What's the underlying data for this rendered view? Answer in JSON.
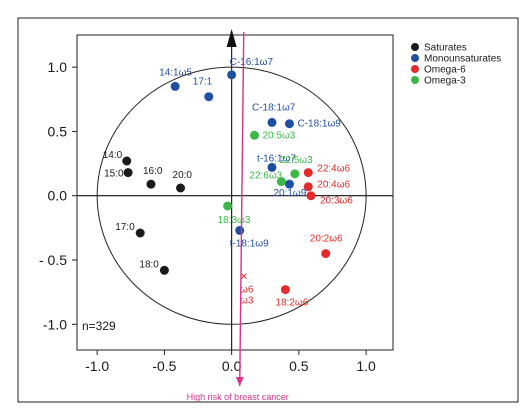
{
  "chart_data": {
    "type": "scatter",
    "title": "",
    "xlabel": "",
    "ylabel": "",
    "xlim": [
      -1.15,
      1.2
    ],
    "ylim": [
      -1.2,
      1.25
    ],
    "x_ticks": [
      -1.0,
      -0.5,
      0.0,
      0.5,
      1.0
    ],
    "x_tick_labels": [
      "-1.0",
      "-0.5",
      "0.0",
      "0.5",
      "1.0"
    ],
    "y_ticks": [
      1.0,
      0.5,
      0.0,
      -0.5,
      -1.0
    ],
    "y_tick_labels": [
      "1.0",
      "0.5",
      "0.0",
      "- 0.5",
      "-1.0"
    ],
    "grid": false,
    "legend_position": "top-right",
    "unit_circle": true,
    "colors": {
      "Saturates": "#1a1a1a",
      "Monounsaturates": "#1f4fa0",
      "Omega-6": "#e32b2b",
      "Omega-3": "#3cb84a",
      "arrow": "#d6338a"
    },
    "series": [
      {
        "name": "Saturates",
        "points": [
          {
            "label": "14:0",
            "x": -0.78,
            "y": 0.27
          },
          {
            "label": "15:0",
            "x": -0.77,
            "y": 0.18
          },
          {
            "label": "16:0",
            "x": -0.6,
            "y": 0.09
          },
          {
            "label": "20:0",
            "x": -0.38,
            "y": 0.06
          },
          {
            "label": "17:0",
            "x": -0.68,
            "y": -0.29
          },
          {
            "label": "18:0",
            "x": -0.5,
            "y": -0.58
          }
        ]
      },
      {
        "name": "Monounsaturates",
        "points": [
          {
            "label": "14:1ω5",
            "x": -0.42,
            "y": 0.85
          },
          {
            "label": "17:1",
            "x": -0.17,
            "y": 0.77
          },
          {
            "label": "C-16:1ω7",
            "x": 0.0,
            "y": 0.94
          },
          {
            "label": "C-18:1ω7",
            "x": 0.3,
            "y": 0.57
          },
          {
            "label": "C-18:1ω9",
            "x": 0.43,
            "y": 0.56
          },
          {
            "label": "t-16:1ω7",
            "x": 0.3,
            "y": 0.22
          },
          {
            "label": "20:1ω9",
            "x": 0.43,
            "y": 0.09
          },
          {
            "label": "t-18:1ω9",
            "x": 0.06,
            "y": -0.27
          }
        ]
      },
      {
        "name": "Omega-6",
        "points": [
          {
            "label": "22:4ω6",
            "x": 0.57,
            "y": 0.18
          },
          {
            "label": "20:4ω6",
            "x": 0.57,
            "y": 0.07
          },
          {
            "label": "20:3ω6",
            "x": 0.59,
            "y": 0.0
          },
          {
            "label": "20:2ω6",
            "x": 0.7,
            "y": -0.45
          },
          {
            "label": "18:2ω6",
            "x": 0.4,
            "y": -0.73
          }
        ]
      },
      {
        "name": "Omega-3",
        "points": [
          {
            "label": "20:5ω3",
            "x": 0.17,
            "y": 0.47
          },
          {
            "label": "22:5ω3",
            "x": 0.47,
            "y": 0.17
          },
          {
            "label": "22:6ω3",
            "x": 0.37,
            "y": 0.11
          },
          {
            "label": "18:3ω3",
            "x": -0.03,
            "y": -0.08
          }
        ]
      }
    ],
    "markers": [
      {
        "symbol": "×",
        "x": 0.09,
        "y": -0.63,
        "color": "#e32b2b",
        "lines": [
          "ω6",
          "ω3"
        ]
      }
    ],
    "arrow": {
      "from": [
        0.06,
        -1.55
      ],
      "to": [
        0.09,
        1.3
      ],
      "label": "High risk of breast cancer",
      "color": "#d6338a"
    },
    "annotation": "n=329"
  }
}
